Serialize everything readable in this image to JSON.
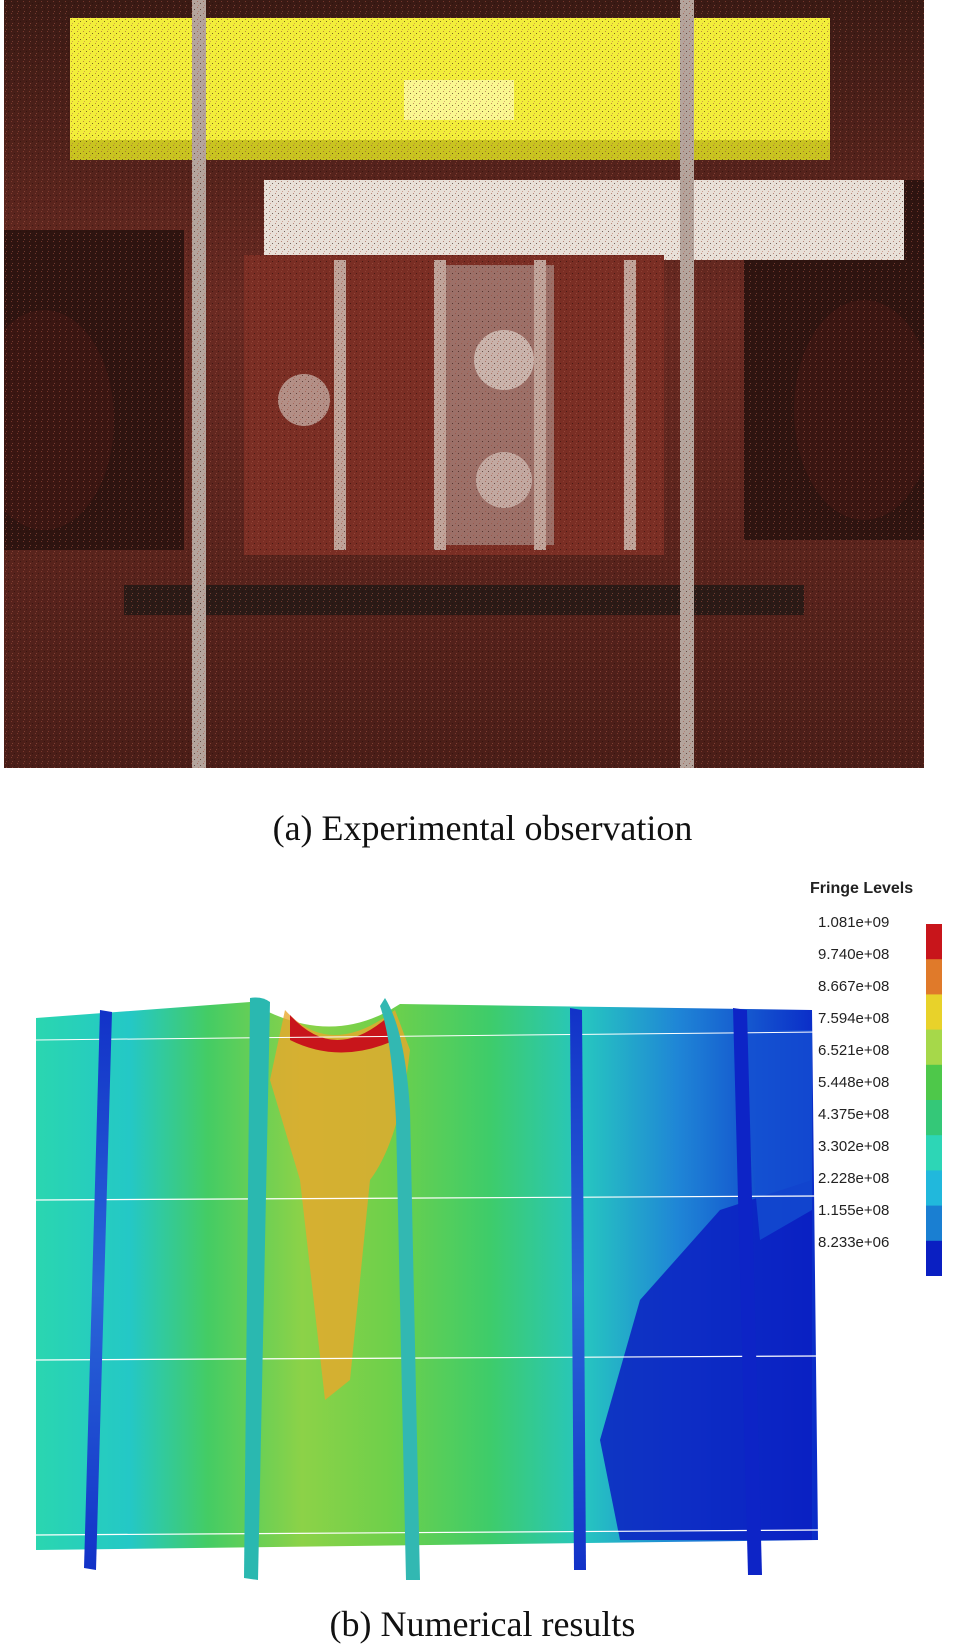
{
  "panel_a": {
    "caption": "(a) Experimental observation"
  },
  "panel_b": {
    "caption": "(b) Numerical results",
    "legend": {
      "title": "Fringe Levels",
      "levels": [
        "1.081e+09",
        "9.740e+08",
        "8.667e+08",
        "7.594e+08",
        "6.521e+08",
        "5.448e+08",
        "4.375e+08",
        "3.302e+08",
        "2.228e+08",
        "1.155e+08",
        "8.233e+06"
      ],
      "colors": [
        "#c8151b",
        "#e07a2a",
        "#e8d22a",
        "#a6d84a",
        "#4ec84a",
        "#34c878",
        "#2dd6b6",
        "#21b8dc",
        "#1a7fd2",
        "#0a1fc2"
      ]
    }
  }
}
